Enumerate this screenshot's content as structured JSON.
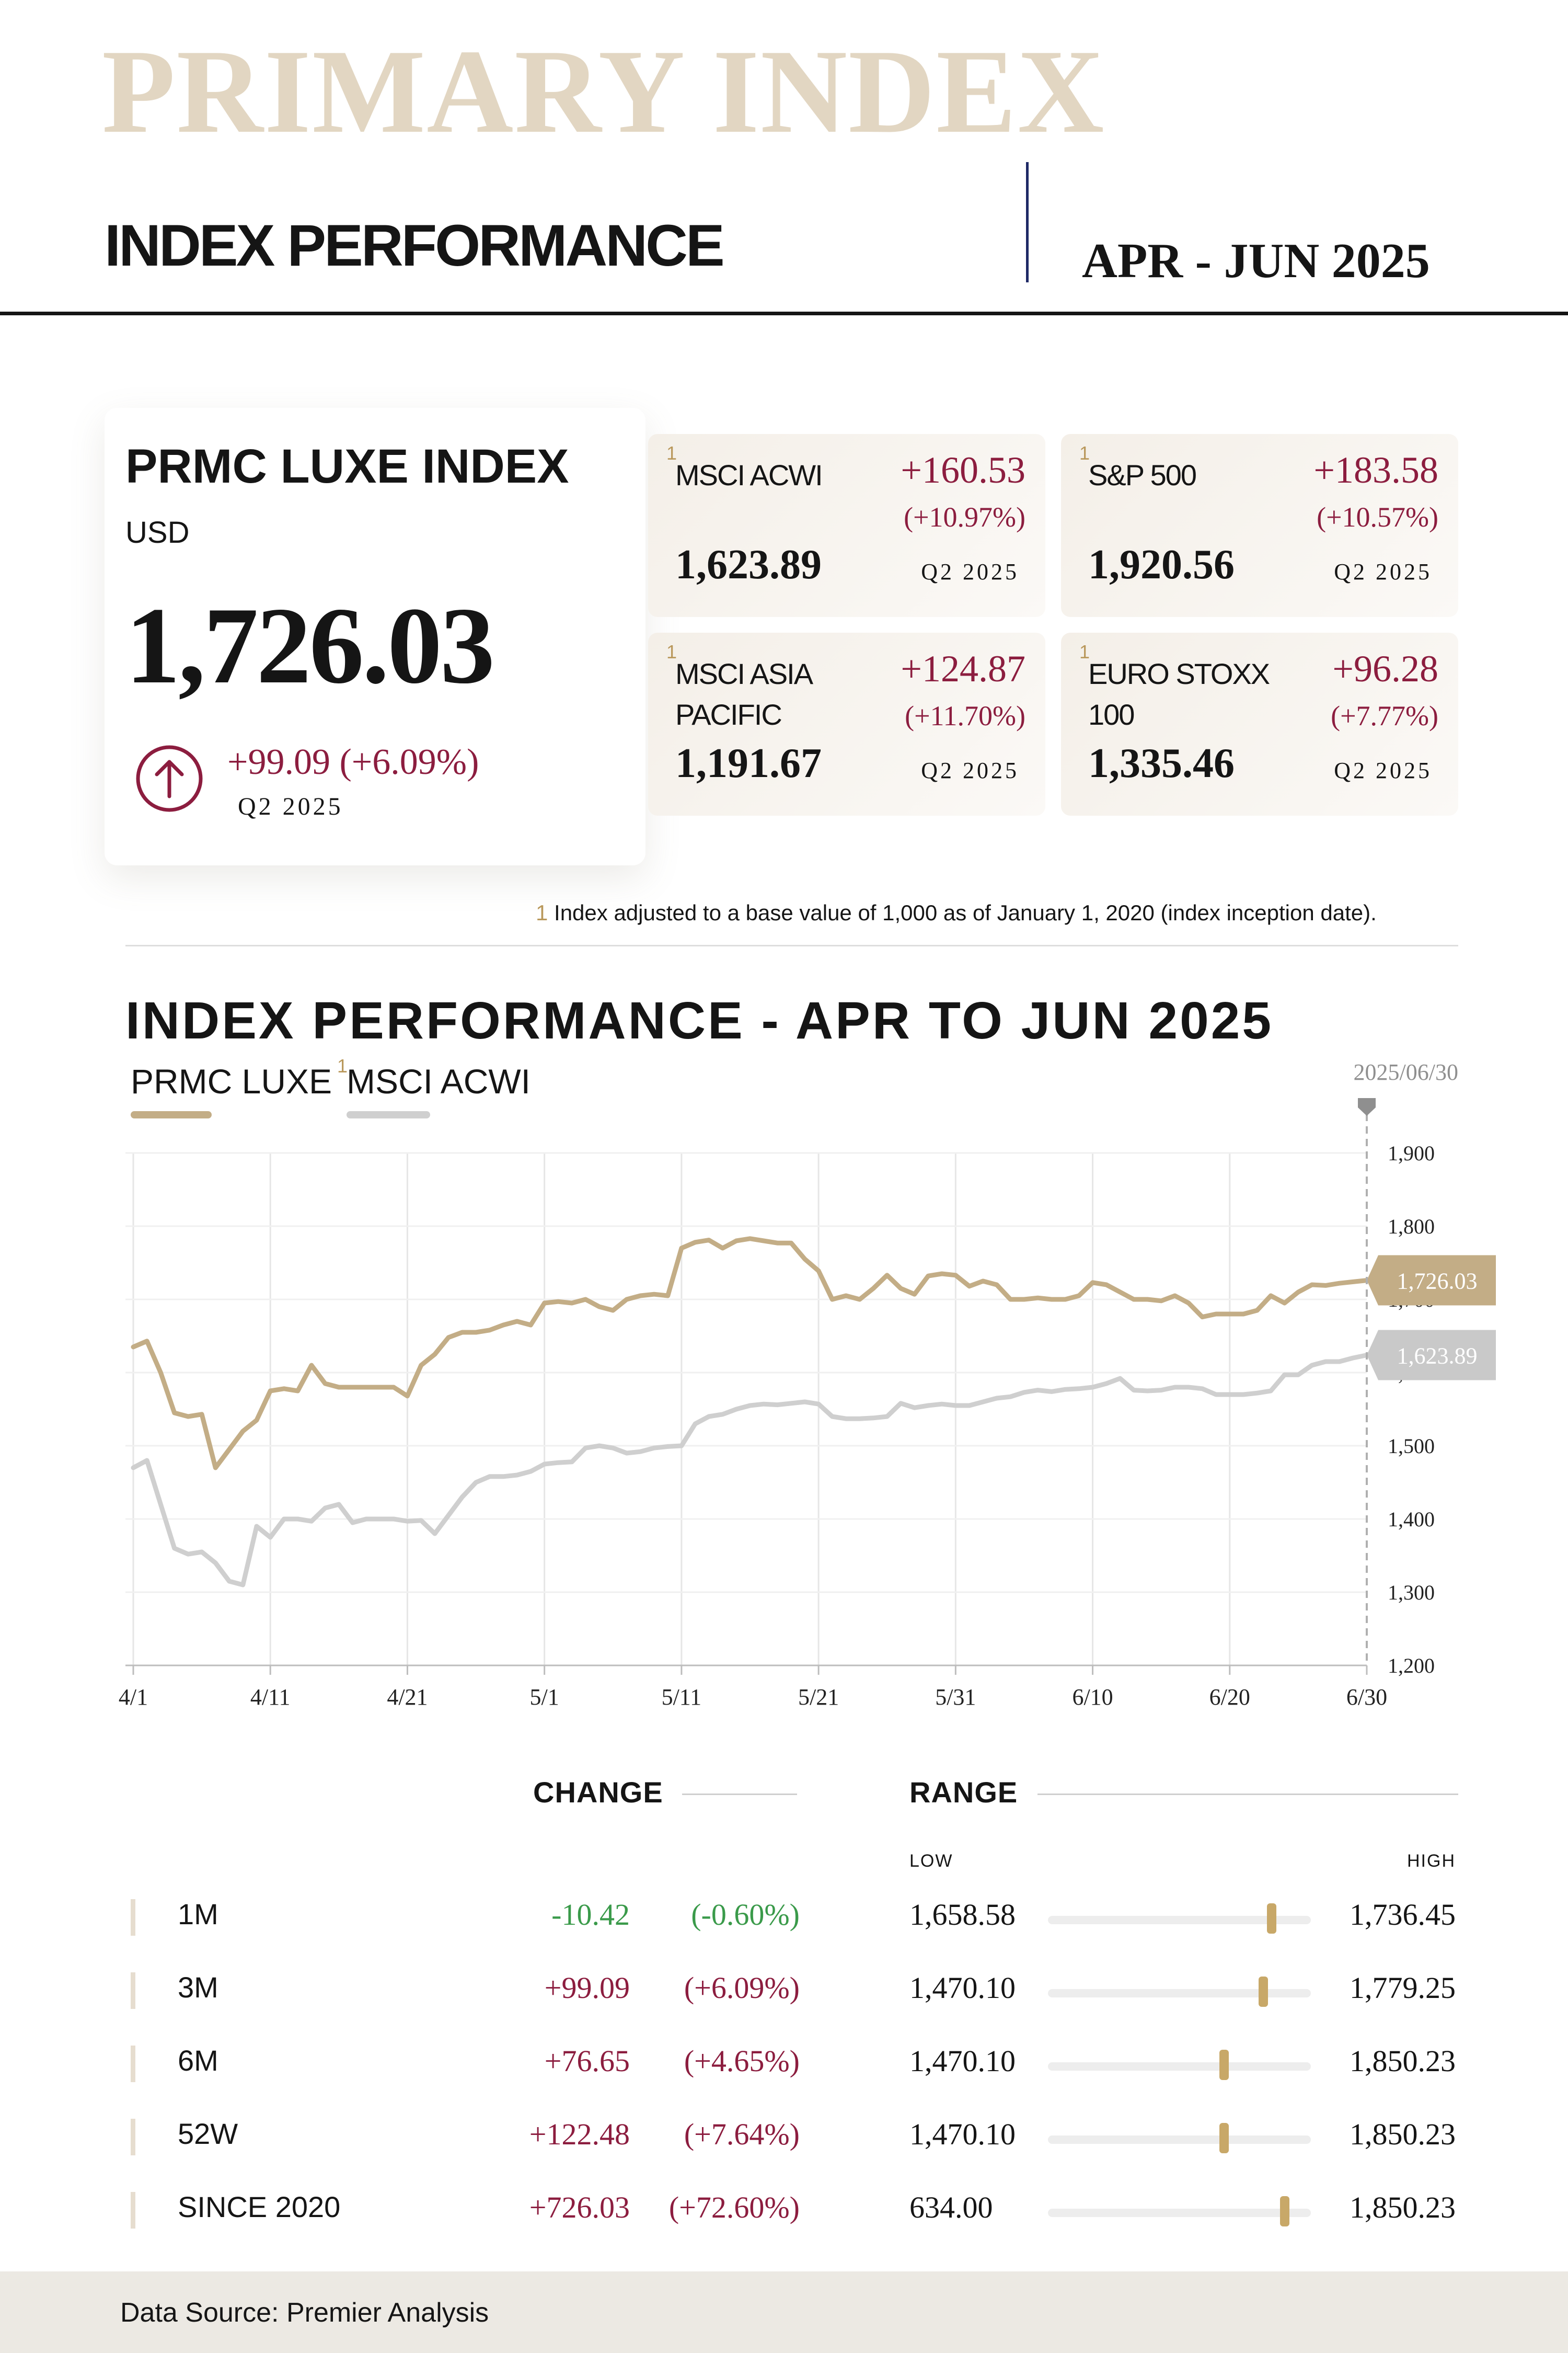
{
  "header": {
    "big_title": "PRIMARY INDEX",
    "subtitle": "INDEX PERFORMANCE",
    "period": "APR - JUN 2025"
  },
  "main_index": {
    "name": "PRMC LUXE INDEX",
    "currency": "USD",
    "value": "1,726.03",
    "change": "+99.09 (+6.09%)",
    "quarter": "Q2 2025",
    "icon": "arrow-up-circle-icon"
  },
  "comparison_cards": [
    {
      "sup": "1",
      "name": "MSCI ACWI",
      "change": "+160.53",
      "pct": "(+10.97%)",
      "value": "1,623.89",
      "quarter": "Q2 2025"
    },
    {
      "sup": "1",
      "name": "S&P 500",
      "change": "+183.58",
      "pct": "(+10.57%)",
      "value": "1,920.56",
      "quarter": "Q2 2025"
    },
    {
      "sup": "1",
      "name": "MSCI ASIA PACIFIC",
      "change": "+124.87",
      "pct": "(+11.70%)",
      "value": "1,191.67",
      "quarter": "Q2 2025"
    },
    {
      "sup": "1",
      "name": "EURO STOXX 100",
      "change": "+96.28",
      "pct": "(+7.77%)",
      "value": "1,335.46",
      "quarter": "Q2 2025"
    }
  ],
  "footnote": {
    "num": "1",
    "text": "Index adjusted to a base value of 1,000 as of January 1, 2020 (index inception date)."
  },
  "chart_section": {
    "title": "INDEX PERFORMANCE - APR TO JUN 2025",
    "legend_primary": "PRMC LUXE",
    "legend_secondary_sup": "1",
    "legend_secondary": "MSCI ACWI",
    "end_date": "2025/06/30"
  },
  "colors": {
    "primary_line": "#c3ad86",
    "secondary_line": "#cfcfcf",
    "accent": "#8c1d3f",
    "negative": "#3a9a4a",
    "gold": "#c8a868"
  },
  "chart_data": {
    "type": "line",
    "x": [
      "4/1",
      "4/2",
      "4/3",
      "4/4",
      "4/5",
      "4/6",
      "4/7",
      "4/8",
      "4/9",
      "4/10",
      "4/11",
      "4/12",
      "4/13",
      "4/14",
      "4/15",
      "4/16",
      "4/17",
      "4/18",
      "4/19",
      "4/20",
      "4/21",
      "4/22",
      "4/23",
      "4/24",
      "4/25",
      "4/26",
      "4/27",
      "4/28",
      "4/29",
      "4/30",
      "5/1",
      "5/2",
      "5/3",
      "5/4",
      "5/5",
      "5/6",
      "5/7",
      "5/8",
      "5/9",
      "5/10",
      "5/11",
      "5/12",
      "5/13",
      "5/14",
      "5/15",
      "5/16",
      "5/17",
      "5/18",
      "5/19",
      "5/20",
      "5/21",
      "5/22",
      "5/23",
      "5/24",
      "5/25",
      "5/26",
      "5/27",
      "5/28",
      "5/29",
      "5/30",
      "5/31",
      "6/1",
      "6/2",
      "6/3",
      "6/4",
      "6/5",
      "6/6",
      "6/7",
      "6/8",
      "6/9",
      "6/10",
      "6/11",
      "6/12",
      "6/13",
      "6/14",
      "6/15",
      "6/16",
      "6/17",
      "6/18",
      "6/19",
      "6/20",
      "6/21",
      "6/22",
      "6/23",
      "6/24",
      "6/25",
      "6/26",
      "6/27",
      "6/28",
      "6/29",
      "6/30"
    ],
    "series": [
      {
        "name": "PRMC LUXE",
        "values": [
          1635,
          1643,
          1600,
          1545,
          1540,
          1543,
          1470,
          1495,
          1520,
          1535,
          1575,
          1578,
          1575,
          1610,
          1585,
          1580,
          1580,
          1580,
          1580,
          1580,
          1568,
          1610,
          1625,
          1648,
          1655,
          1655,
          1658,
          1665,
          1670,
          1665,
          1695,
          1697,
          1695,
          1700,
          1690,
          1685,
          1700,
          1705,
          1707,
          1705,
          1770,
          1778,
          1781,
          1770,
          1780,
          1783,
          1780,
          1777,
          1777,
          1755,
          1739,
          1700,
          1705,
          1700,
          1715,
          1733,
          1715,
          1707,
          1732,
          1735,
          1733,
          1718,
          1725,
          1720,
          1700,
          1700,
          1702,
          1700,
          1700,
          1705,
          1723,
          1720,
          1710,
          1700,
          1700,
          1698,
          1705,
          1695,
          1676,
          1680,
          1680,
          1680,
          1685,
          1705,
          1695,
          1710,
          1720,
          1719,
          1722,
          1724,
          1726.03
        ]
      },
      {
        "name": "MSCI ACWI",
        "values": [
          1470,
          1480,
          1420,
          1360,
          1352,
          1355,
          1340,
          1315,
          1310,
          1390,
          1375,
          1400,
          1400,
          1397,
          1415,
          1420,
          1395,
          1400,
          1400,
          1400,
          1397,
          1398,
          1380,
          1405,
          1430,
          1450,
          1458,
          1458,
          1460,
          1465,
          1475,
          1477,
          1478,
          1497,
          1500,
          1497,
          1490,
          1492,
          1497,
          1499,
          1500,
          1530,
          1540,
          1543,
          1550,
          1555,
          1557,
          1556,
          1558,
          1560,
          1557,
          1540,
          1537,
          1537,
          1538,
          1540,
          1558,
          1552,
          1555,
          1557,
          1555,
          1555,
          1560,
          1565,
          1567,
          1573,
          1576,
          1574,
          1577,
          1578,
          1580,
          1585,
          1592,
          1576,
          1575,
          1576,
          1580,
          1580,
          1578,
          1570,
          1570,
          1570,
          1572,
          1575,
          1597,
          1597,
          1610,
          1615,
          1615,
          1620,
          1623.89
        ]
      }
    ],
    "y_ticks": [
      "1,200",
      "1,300",
      "1,400",
      "1,500",
      "1,600",
      "1,700",
      "1,800",
      "1,900"
    ],
    "x_ticks": [
      "4/1",
      "4/11",
      "4/21",
      "5/1",
      "5/11",
      "5/21",
      "5/31",
      "6/10",
      "6/20",
      "6/30"
    ],
    "end_labels": [
      "1,726.03",
      "1,623.89"
    ],
    "ylim": [
      1200,
      1900
    ],
    "grid": true,
    "legend": "top-left"
  },
  "table": {
    "change_header": "CHANGE",
    "range_header": "RANGE",
    "low_label": "LOW",
    "high_label": "HIGH",
    "rows": [
      {
        "period": "1M",
        "change": "-10.42",
        "pct": "(-0.60%)",
        "low": "1,658.58",
        "high": "1,736.45",
        "position": 0.85
      },
      {
        "period": "3M",
        "change": "+99.09",
        "pct": "(+6.09%)",
        "low": "1,470.10",
        "high": "1,779.25",
        "position": 0.82
      },
      {
        "period": "6M",
        "change": "+76.65",
        "pct": "(+4.65%)",
        "low": "1,470.10",
        "high": "1,850.23",
        "position": 0.67
      },
      {
        "period": "52W",
        "change": "+122.48",
        "pct": "(+7.64%)",
        "low": "1,470.10",
        "high": "1,850.23",
        "position": 0.67
      },
      {
        "period": "SINCE 2020",
        "change": "+726.03",
        "pct": "(+72.60%)",
        "low": "634.00",
        "high": "1,850.23",
        "position": 0.9
      }
    ]
  },
  "footer": {
    "source": "Data Source: Premier Analysis"
  }
}
